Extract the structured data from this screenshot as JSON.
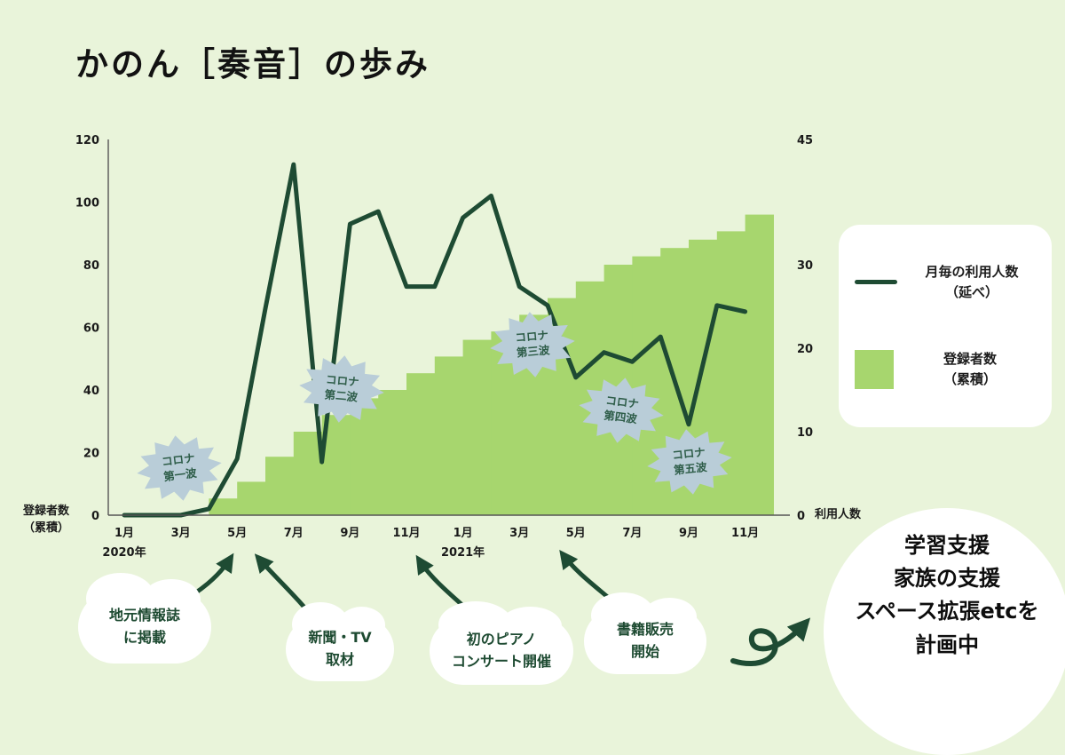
{
  "page": {
    "background_color": "#e9f4da"
  },
  "title": "かのん［奏音］の歩み",
  "chart_data": {
    "type": "combo",
    "categories": [
      "2020-01",
      "2020-02",
      "2020-03",
      "2020-04",
      "2020-05",
      "2020-06",
      "2020-07",
      "2020-08",
      "2020-09",
      "2020-10",
      "2020-11",
      "2020-12",
      "2021-01",
      "2021-02",
      "2021-03",
      "2021-04",
      "2021-05",
      "2021-06",
      "2021-07",
      "2021-08",
      "2021-09",
      "2021-10",
      "2021-11"
    ],
    "series": [
      {
        "name": "月毎の利用人数（延べ）",
        "type": "line",
        "axis": "left",
        "values": [
          0,
          0,
          0,
          2,
          18,
          66,
          112,
          17,
          93,
          97,
          73,
          73,
          95,
          102,
          73,
          67,
          44,
          52,
          49,
          57,
          29,
          67,
          65
        ]
      },
      {
        "name": "登録者数（累積）",
        "type": "bar",
        "axis": "right",
        "values": [
          0,
          0,
          0,
          2,
          4,
          7,
          10,
          12,
          14,
          15,
          17,
          19,
          21,
          22,
          24,
          26,
          28,
          30,
          31,
          32,
          33,
          34,
          36
        ]
      }
    ],
    "left_axis": {
      "range": [
        0,
        120
      ],
      "ticks": [
        0,
        20,
        40,
        60,
        80,
        100,
        120
      ],
      "label": "登録者数\n（累積）"
    },
    "right_axis": {
      "range": [
        0,
        45
      ],
      "ticks": [
        0,
        10,
        20,
        30,
        45
      ],
      "label": "利用人数"
    },
    "x_tick_labels": [
      "1月",
      "3月",
      "5月",
      "7月",
      "9月",
      "11月",
      "1月",
      "3月",
      "5月",
      "7月",
      "9月",
      "11月"
    ],
    "x_year_labels": [
      {
        "label": "2020年",
        "month_index": 0
      },
      {
        "label": "2021年",
        "month_index": 12
      }
    ],
    "legend_position": "right",
    "grid": false,
    "colors": {
      "line": "#1e4b33",
      "bar": "#a7d66e",
      "background": "#e9f4da"
    }
  },
  "annotations": {
    "waves": [
      {
        "text": "コロナ\n第一波"
      },
      {
        "text": "コロナ\n第二波"
      },
      {
        "text": "コロナ\n第三波"
      },
      {
        "text": "コロナ\n第四波"
      },
      {
        "text": "コロナ\n第五波"
      }
    ]
  },
  "events": [
    {
      "text": "地元情報誌\nに掲載"
    },
    {
      "text": "新聞・TV\n取材"
    },
    {
      "text": "初のピアノ\nコンサート開催"
    },
    {
      "text": "書籍販売\n開始"
    }
  ],
  "legend": {
    "items": [
      {
        "label": "月毎の利用人数\n（延べ）",
        "swatch": "line"
      },
      {
        "label": "登録者数\n（累積）",
        "swatch": "bar"
      }
    ]
  },
  "plan_bubble": {
    "text": "学習支援\n家族の支援\nスペース拡張etcを\n計画中"
  }
}
